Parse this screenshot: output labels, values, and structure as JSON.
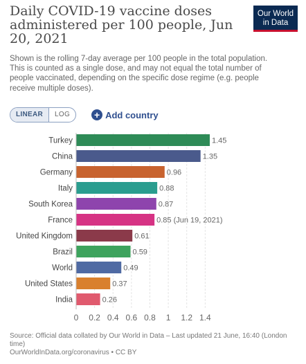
{
  "header": {
    "title": "Daily COVID-19 vaccine doses administered per 100 people, Jun 20, 2021",
    "subtitle": "Shown is the rolling 7-day average per 100 people in the total population. This is counted as a single dose, and may not equal the total number of people vaccinated, depending on the specific dose regime (e.g. people receive multiple doses).",
    "logo_line1": "Our World",
    "logo_line2": "in Data",
    "logo_color": "#0b2a52",
    "logo_accent": "#c8102e"
  },
  "controls": {
    "linear_label": "LINEAR",
    "log_label": "LOG",
    "add_country_label": "Add country",
    "plus_icon": "plus-circle-icon"
  },
  "chart_data": {
    "type": "bar",
    "orientation": "horizontal",
    "categories": [
      "Turkey",
      "China",
      "Germany",
      "Italy",
      "South Korea",
      "France",
      "United Kingdom",
      "Brazil",
      "World",
      "United States",
      "India"
    ],
    "values": [
      1.45,
      1.35,
      0.96,
      0.88,
      0.87,
      0.85,
      0.61,
      0.59,
      0.49,
      0.37,
      0.26
    ],
    "value_labels": [
      "1.45",
      "1.35",
      "0.96",
      "0.88",
      "0.87",
      "0.85 (Jun 19, 2021)",
      "0.61",
      "0.59",
      "0.49",
      "0.37",
      "0.26"
    ],
    "colors": [
      "#2e8b57",
      "#4a5a8c",
      "#c8632f",
      "#2a9d8f",
      "#8e44ad",
      "#d63384",
      "#8b3a4a",
      "#3da35d",
      "#4f6aa3",
      "#d9802e",
      "#e05a6e"
    ],
    "xticks": [
      "0",
      "0.2",
      "0.4",
      "0.6",
      "0.8",
      "1",
      "1.2",
      "1.4"
    ],
    "xlim": [
      0,
      1.45
    ],
    "grid": true
  },
  "footer": {
    "source": "Source: Official data collated by Our World in Data – Last updated 21 June, 16:40 (London time)",
    "url": "OurWorldInData.org/coronavirus • CC BY"
  }
}
